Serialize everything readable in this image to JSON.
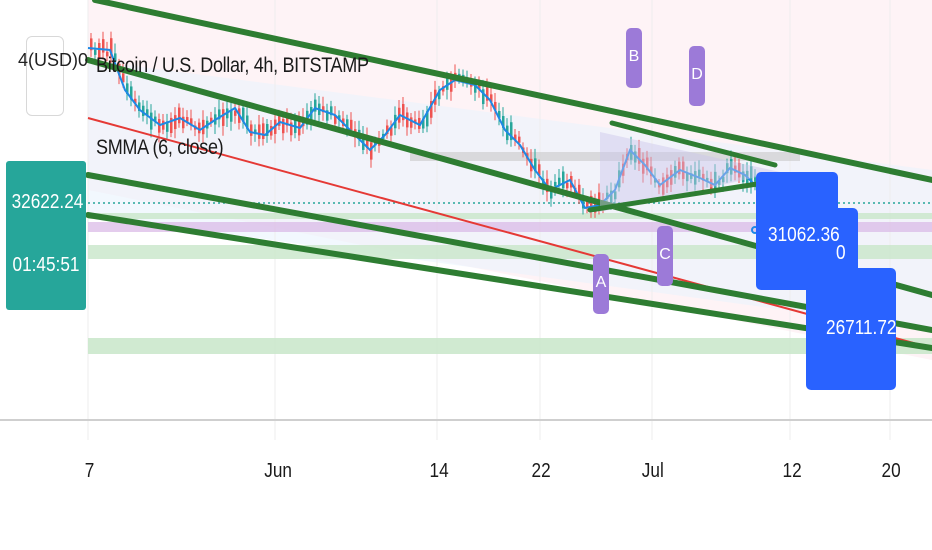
{
  "header": {
    "currency_label": "USD",
    "currency_clip_left": "4(",
    "currency_clip_right": ")0",
    "symbol_title": "Bitcoin / U.S. Dollar, 4h, BITSTAMP",
    "indicator_title": "SMMA (6, close)"
  },
  "price_badge": {
    "price": "32622.24",
    "countdown": "01:45:51",
    "color": "#26a69a"
  },
  "price_tags": [
    {
      "label": "31062.36"
    },
    {
      "label": "0"
    },
    {
      "label": "26711.72"
    }
  ],
  "wave_labels": [
    "B",
    "D",
    "A",
    "C"
  ],
  "x_axis": {
    "ticks": [
      "7",
      "Jun",
      "14",
      "22",
      "Jul",
      "12",
      "20"
    ]
  },
  "colors": {
    "channel_green": "#2e7d32",
    "regression_red": "#e53935",
    "smma_blue": "#1e88e5",
    "tag_blue": "#2962ff",
    "wave_purple": "#9c7ad8",
    "teal_badge": "#26a69a"
  }
}
